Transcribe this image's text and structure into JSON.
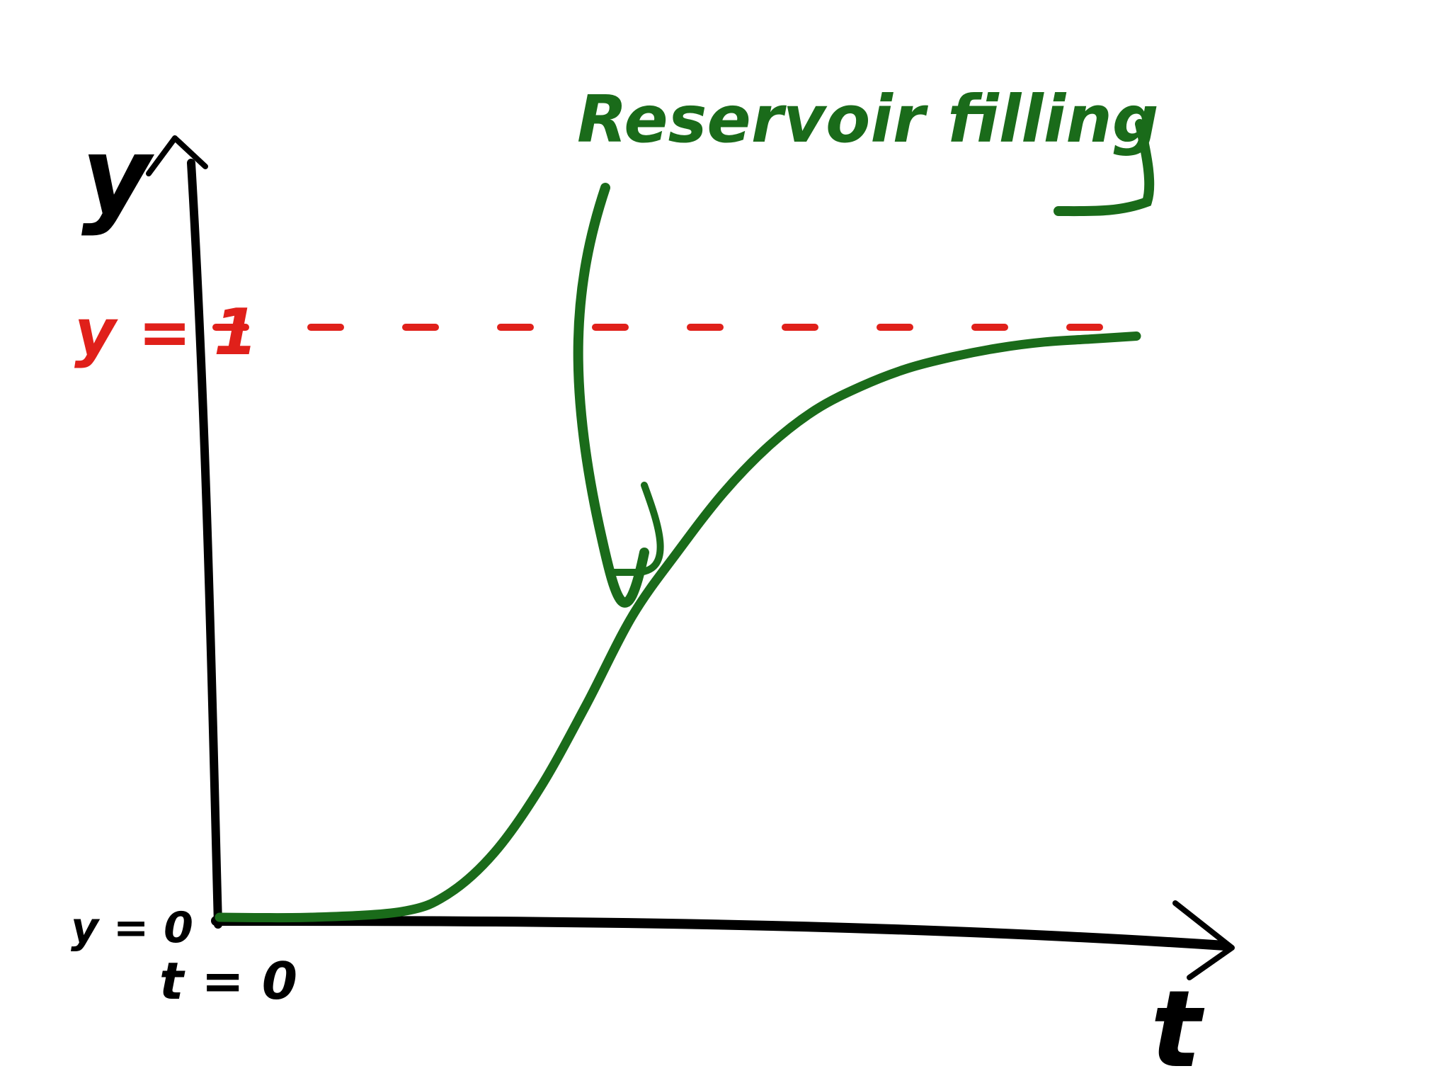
{
  "labels": {
    "y_axis": "y",
    "x_axis": "t",
    "y_one": "y = 1",
    "y_zero": "y = 0",
    "t_zero": "t = 0",
    "annotation": "Reservoir filling"
  },
  "colors": {
    "axis": "#000000",
    "curve": "#1a6b1a",
    "asymptote": "#e0201a",
    "background": "#ffffff"
  },
  "chart_data": {
    "type": "line",
    "title": "",
    "xlabel": "t",
    "ylabel": "y",
    "xlim": [
      0,
      1
    ],
    "ylim": [
      0,
      1
    ],
    "x": [
      0.0,
      0.1,
      0.2,
      0.25,
      0.3,
      0.35,
      0.4,
      0.45,
      0.5,
      0.55,
      0.6,
      0.65,
      0.7,
      0.75,
      0.8,
      0.85,
      0.9,
      0.95,
      1.0
    ],
    "series": [
      {
        "values": [
          0.0,
          0.0,
          0.01,
          0.04,
          0.11,
          0.22,
          0.36,
          0.51,
          0.62,
          0.72,
          0.8,
          0.86,
          0.9,
          0.93,
          0.95,
          0.965,
          0.975,
          0.98,
          0.985
        ]
      }
    ],
    "reference_lines": [
      {
        "axis": "y",
        "value": 1,
        "label": "y = 1",
        "style": "dashed"
      }
    ]
  }
}
